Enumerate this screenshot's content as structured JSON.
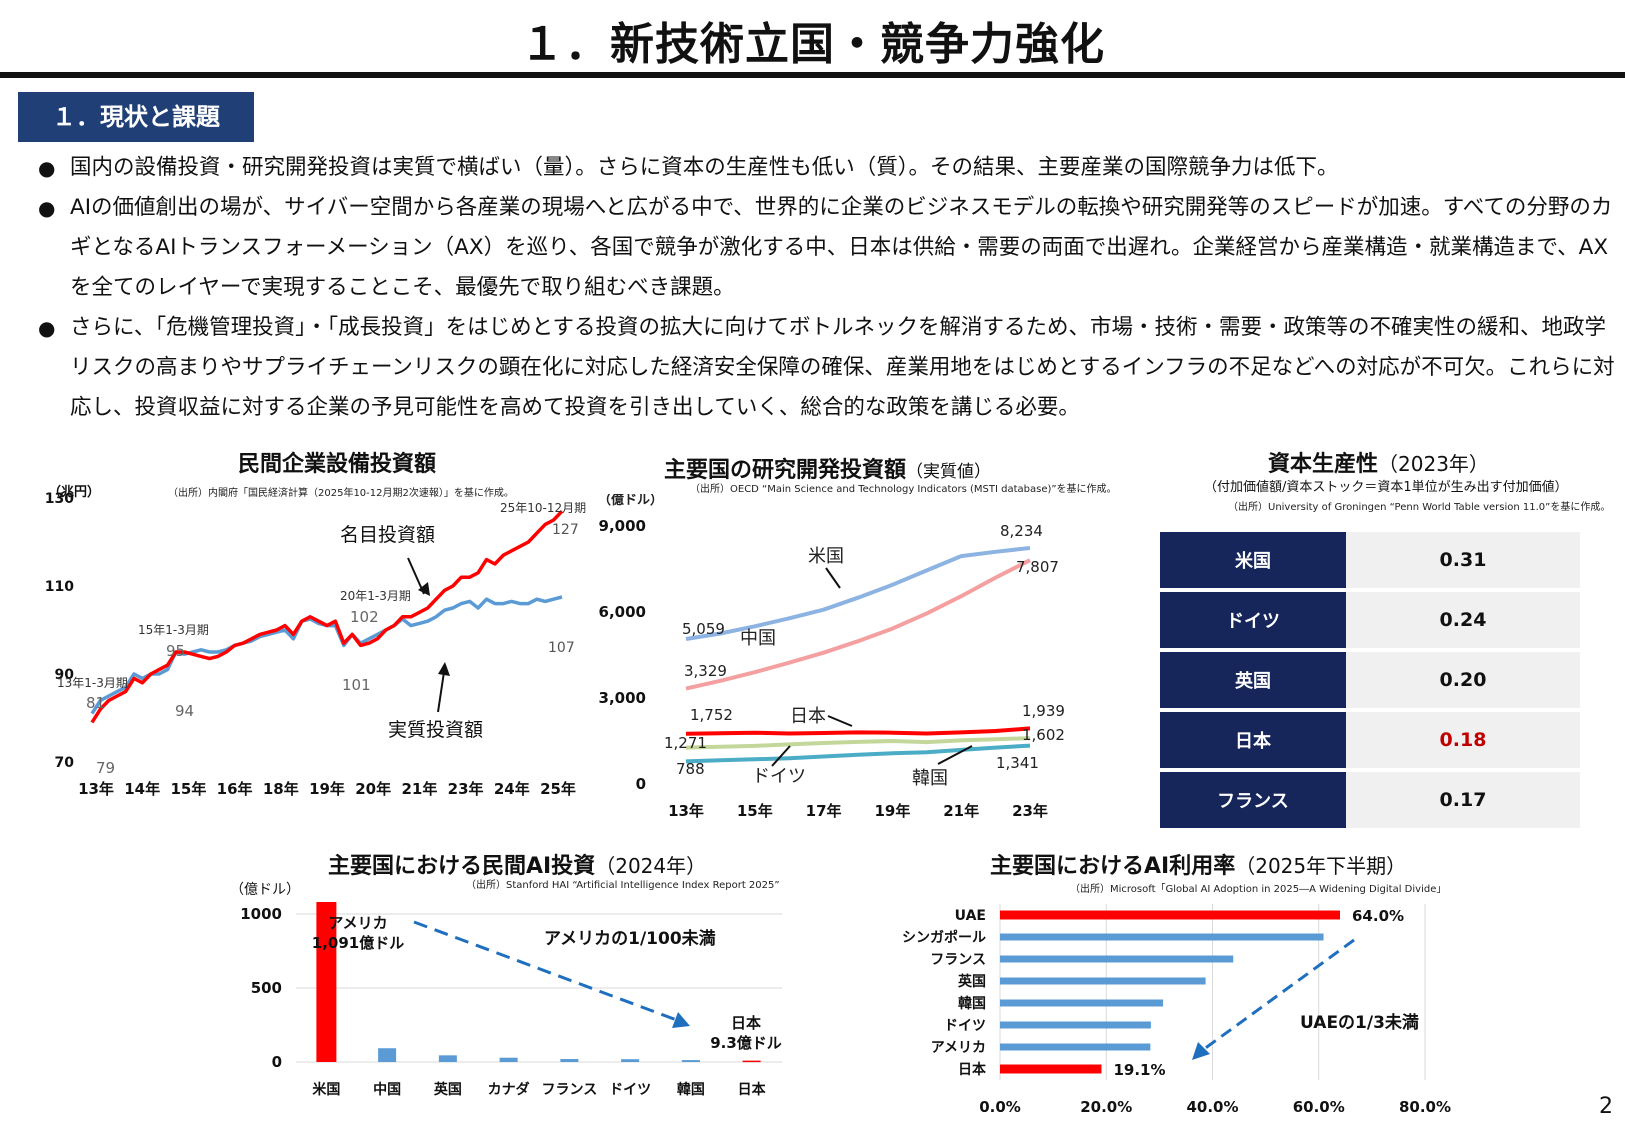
{
  "title": "１．新技術立国・競争力強化",
  "section_label": "１．現状と課題",
  "bullets": [
    "国内の設備投資・研究開発投資は実質で横ばい（量）。さらに資本の生産性も低い（質）。その結果、主要産業の国際競争力は低下。",
    "AIの価値創出の場が、サイバー空間から各産業の現場へと広がる中で、世界的に企業のビジネスモデルの転換や研究開発等のスピードが加速。すべての分野のカギとなるAIトランスフォーメーション（AX）を巡り、各国で競争が激化する中、日本は供給・需要の両面で出遅れ。企業経営から産業構造・就業構造まで、AXを全てのレイヤーで実現することこそ、最優先で取り組むべき課題。",
    "さらに、「危機管理投資」・「成長投資」をはじめとする投資の拡大に向けてボトルネックを解消するため、市場・技術・需要・政策等の不確実性の緩和、地政学リスクの高まりやサプライチェーンリスクの顕在化に対応した経済安全保障の確保、産業用地をはじめとするインフラの不足などへの対応が不可欠。これらに対応し、投資収益に対する企業の予見可能性を高めて投資を引き出していく、総合的な政策を講じる必要。"
  ],
  "page_number": "2",
  "colors": {
    "navy": "#1f3f76",
    "red": "#ff0000",
    "blue": "#5b9bd5",
    "table_navy": "#16265a"
  },
  "charts": {
    "capex": {
      "title": "民間企業設備投資額",
      "source": "（出所）内閣府「国民経済計算（2025年10-12月期2次速報）」を基に作成。",
      "unit": "（兆円）",
      "label_nominal": "名目投資額",
      "label_real": "実質投資額",
      "ann_25q4": "25年10-12月期",
      "ann_20q1": "20年1-3月期",
      "ann_15q1": "15年1-3月期",
      "ann_13q1": "13年1-3月期",
      "val_81": "81",
      "val_79": "79",
      "val_95": "95",
      "val_94": "94",
      "val_102": "102",
      "val_101": "101",
      "val_127": "127",
      "val_107": "107"
    },
    "rd": {
      "title": "主要国の研究開発投資額",
      "title_sub": "（実質値）",
      "source": "（出所）OECD “Main Science and Technology Indicators (MSTI database)”を基に作成。",
      "unit": "（億ドル）",
      "names": {
        "us": "米国",
        "cn": "中国",
        "jp": "日本",
        "de": "ドイツ",
        "kr": "韓国"
      },
      "labels": [
        "8,234",
        "7,807",
        "5,059",
        "3,329",
        "1,752",
        "1,271",
        "788",
        "1,939",
        "1,602",
        "1,341"
      ]
    },
    "productivity": {
      "title": "資本生産性",
      "title_sub": "（2023年）",
      "subtitle": "（付加価値額/資本ストック＝資本1単位が生み出す付加価値）",
      "source": "（出所）University of Groningen “Penn World Table version 11.0”を基に作成。"
    },
    "ai_invest": {
      "title": "主要国における民間AI投資",
      "title_sub": "（2024年）",
      "source": "（出所）Stanford HAI “Artificial Intelligence Index Report 2025”",
      "unit": "（億ドル）",
      "ann_us_1": "アメリカ",
      "ann_us_2": "1,091億ドル",
      "ann_ratio": "アメリカの1/100未満",
      "ann_jp_1": "日本",
      "ann_jp_2": "9.3億ドル"
    },
    "ai_usage": {
      "title": "主要国におけるAI利用率",
      "title_sub": "（2025年下半期）",
      "source": "（出所）Microsoft「Global AI Adoption in 2025―A Widening Digital Divide」",
      "ann_ratio": "UAEの1/3未満"
    }
  },
  "chart_data": [
    {
      "type": "line",
      "title": "民間企業設備投資額",
      "ylabel": "（兆円）",
      "ylim": [
        70,
        130
      ],
      "yticks": [
        "70",
        "90",
        "110",
        "130"
      ],
      "xticks": [
        "13年",
        "14年",
        "15年",
        "16年",
        "18年",
        "19年",
        "20年",
        "21年",
        "23年",
        "24年",
        "25年"
      ],
      "series": [
        {
          "name": "名目投資額",
          "color": "#ff0000",
          "values": [
            79,
            82,
            84,
            85,
            86,
            89,
            88,
            90,
            91,
            92,
            95,
            95,
            94.5,
            94,
            93.5,
            94,
            95,
            96.5,
            97,
            98,
            99,
            99.5,
            100,
            101,
            99,
            102,
            103,
            102,
            101,
            102,
            97,
            99,
            96.5,
            97,
            98,
            100,
            101,
            103,
            103,
            104,
            105,
            107,
            109,
            110,
            112,
            112,
            113,
            116,
            115,
            117,
            118,
            119,
            120,
            122,
            124,
            125,
            127
          ]
        },
        {
          "name": "実質投資額",
          "color": "#5b9bd5",
          "values": [
            81,
            84,
            85,
            86,
            87,
            90,
            89,
            90,
            90,
            91,
            95,
            94.5,
            95,
            95.5,
            95,
            95,
            95.5,
            96.5,
            97,
            97.5,
            98.5,
            99,
            99.5,
            100,
            98,
            102,
            102.5,
            101.5,
            101,
            101,
            96.5,
            99,
            97,
            98,
            99,
            100,
            101,
            102.5,
            101,
            101.5,
            102,
            103,
            104.5,
            105,
            106,
            106.5,
            105,
            107,
            106,
            106,
            106.5,
            106,
            106,
            107,
            106.5,
            107,
            107.5
          ]
        }
      ]
    },
    {
      "type": "line",
      "title": "主要国の研究開発投資額",
      "ylabel": "（億ドル）",
      "ylim": [
        0,
        9000
      ],
      "yticks": [
        "0",
        "3,000",
        "6,000",
        "9,000"
      ],
      "x": [
        "13年",
        "14年",
        "15年",
        "16年",
        "17年",
        "18年",
        "19年",
        "20年",
        "21年",
        "22年",
        "23年"
      ],
      "xticks": [
        "13年",
        "15年",
        "17年",
        "19年",
        "21年",
        "23年"
      ],
      "series": [
        {
          "name": "米国",
          "color": "#8db3e2",
          "values": [
            5059,
            5250,
            5500,
            5780,
            6080,
            6500,
            6950,
            7450,
            7950,
            8100,
            8234
          ]
        },
        {
          "name": "中国",
          "color": "#f4a0a0",
          "values": [
            3329,
            3600,
            3900,
            4230,
            4580,
            4980,
            5420,
            5950,
            6550,
            7200,
            7807
          ]
        },
        {
          "name": "日本",
          "color": "#ff0000",
          "values": [
            1752,
            1770,
            1790,
            1760,
            1780,
            1800,
            1790,
            1760,
            1800,
            1850,
            1939
          ]
        },
        {
          "name": "ドイツ",
          "color": "#c4d79b",
          "values": [
            1271,
            1300,
            1330,
            1380,
            1430,
            1470,
            1500,
            1460,
            1520,
            1560,
            1602
          ]
        },
        {
          "name": "韓国",
          "color": "#4bacc6",
          "values": [
            788,
            830,
            860,
            900,
            960,
            1020,
            1070,
            1110,
            1190,
            1270,
            1341
          ]
        }
      ]
    },
    {
      "type": "table",
      "title": "資本生産性",
      "rows": [
        {
          "country": "米国",
          "value": "0.31"
        },
        {
          "country": "ドイツ",
          "value": "0.24"
        },
        {
          "country": "英国",
          "value": "0.20"
        },
        {
          "country": "日本",
          "value": "0.18",
          "highlight": "#c00000"
        },
        {
          "country": "フランス",
          "value": "0.17"
        }
      ]
    },
    {
      "type": "bar",
      "title": "主要国における民間AI投資",
      "ylabel": "（億ドル）",
      "ylim": [
        0,
        1000
      ],
      "yticks": [
        "0",
        "500",
        "1000"
      ],
      "categories": [
        "米国",
        "中国",
        "英国",
        "カナダ",
        "フランス",
        "ドイツ",
        "韓国",
        "日本"
      ],
      "values": [
        1091,
        93,
        45,
        29,
        20,
        19,
        13,
        9.3
      ],
      "colors": [
        "#ff0000",
        "#5b9bd5",
        "#5b9bd5",
        "#5b9bd5",
        "#5b9bd5",
        "#5b9bd5",
        "#5b9bd5",
        "#ff0000"
      ]
    },
    {
      "type": "bar",
      "orientation": "horizontal",
      "title": "主要国におけるAI利用率",
      "xlim": [
        0,
        80
      ],
      "xticks": [
        "0.0%",
        "20.0%",
        "40.0%",
        "60.0%",
        "80.0%"
      ],
      "categories": [
        "UAE",
        "シンガポール",
        "フランス",
        "英国",
        "韓国",
        "ドイツ",
        "アメリカ",
        "日本"
      ],
      "values": [
        64.0,
        60.9,
        43.9,
        38.7,
        30.7,
        28.4,
        28.3,
        19.1
      ],
      "value_labels": {
        "UAE": "64.0%",
        "日本": "19.1%"
      },
      "colors": [
        "#ff0000",
        "#5b9bd5",
        "#5b9bd5",
        "#5b9bd5",
        "#5b9bd5",
        "#5b9bd5",
        "#5b9bd5",
        "#ff0000"
      ]
    }
  ]
}
